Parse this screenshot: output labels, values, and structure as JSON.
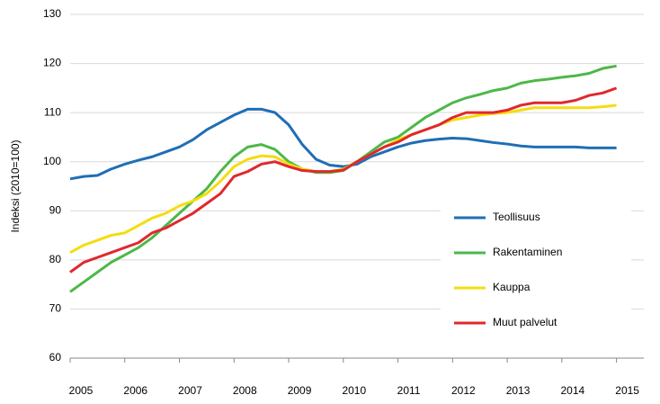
{
  "chart_data": {
    "type": "line",
    "y_label": "Indeksi (2010=100)",
    "x": [
      2005,
      2005.25,
      2005.5,
      2005.75,
      2006,
      2006.25,
      2006.5,
      2006.75,
      2007,
      2007.25,
      2007.5,
      2007.75,
      2008,
      2008.25,
      2008.5,
      2008.75,
      2009,
      2009.25,
      2009.5,
      2009.75,
      2010,
      2010.25,
      2010.5,
      2010.75,
      2011,
      2011.25,
      2011.5,
      2011.75,
      2012,
      2012.25,
      2012.5,
      2012.75,
      2013,
      2013.25,
      2013.5,
      2013.75,
      2014,
      2014.25,
      2014.5,
      2014.75,
      2015
    ],
    "xlim": [
      2005,
      2015.5
    ],
    "xticks": [
      2005,
      2006,
      2007,
      2008,
      2009,
      2010,
      2011,
      2012,
      2013,
      2014,
      2015
    ],
    "ylim": [
      60,
      130
    ],
    "yticks": [
      60,
      70,
      80,
      90,
      100,
      110,
      120,
      130
    ],
    "grid": true,
    "legend_position": "lower right",
    "series": [
      {
        "name": "Teollisuus",
        "color": "#1f6eb5",
        "values": [
          96.5,
          97,
          97.2,
          98.5,
          99.5,
          100.3,
          101,
          102,
          103,
          104.5,
          106.5,
          108,
          109.5,
          110.7,
          110.7,
          110,
          107.5,
          103.5,
          100.5,
          99.3,
          99,
          99.5,
          101,
          102,
          103,
          103.8,
          104.3,
          104.6,
          104.8,
          104.7,
          104.3,
          103.9,
          103.6,
          103.2,
          103,
          103,
          103,
          103,
          102.8,
          102.8,
          102.8
        ]
      },
      {
        "name": "Rakentaminen",
        "color": "#4db848",
        "values": [
          73.5,
          75.5,
          77.5,
          79.5,
          81,
          82.5,
          84.5,
          87,
          89.5,
          92,
          94.5,
          98,
          101,
          103,
          103.5,
          102.5,
          100,
          98.5,
          97.8,
          97.8,
          98.2,
          100,
          102,
          104,
          105,
          107,
          109,
          110.5,
          112,
          113,
          113.7,
          114.5,
          115,
          116,
          116.5,
          116.8,
          117.2,
          117.5,
          118,
          119,
          119.5
        ]
      },
      {
        "name": "Kauppa",
        "color": "#f5dc0f",
        "values": [
          81.5,
          83,
          84,
          85,
          85.5,
          87,
          88.5,
          89.5,
          91,
          92,
          93.5,
          96,
          99,
          100.5,
          101.2,
          101,
          99.5,
          98.5,
          98,
          98,
          98.5,
          100,
          101.5,
          103,
          104.5,
          105.5,
          106.5,
          107.5,
          108.5,
          109,
          109.5,
          109.8,
          110,
          110.5,
          111,
          111,
          111,
          111,
          111,
          111.2,
          111.5
        ]
      },
      {
        "name": "Muut palvelut",
        "color": "#e0282e",
        "values": [
          77.5,
          79.5,
          80.5,
          81.5,
          82.5,
          83.5,
          85.5,
          86.5,
          88,
          89.5,
          91.5,
          93.5,
          97,
          98,
          99.5,
          100,
          99,
          98.2,
          98,
          98,
          98.3,
          100,
          101.5,
          103,
          104,
          105.5,
          106.5,
          107.5,
          109,
          110,
          110,
          110,
          110.5,
          111.5,
          112,
          112,
          112,
          112.5,
          113.5,
          114,
          115
        ]
      }
    ]
  }
}
